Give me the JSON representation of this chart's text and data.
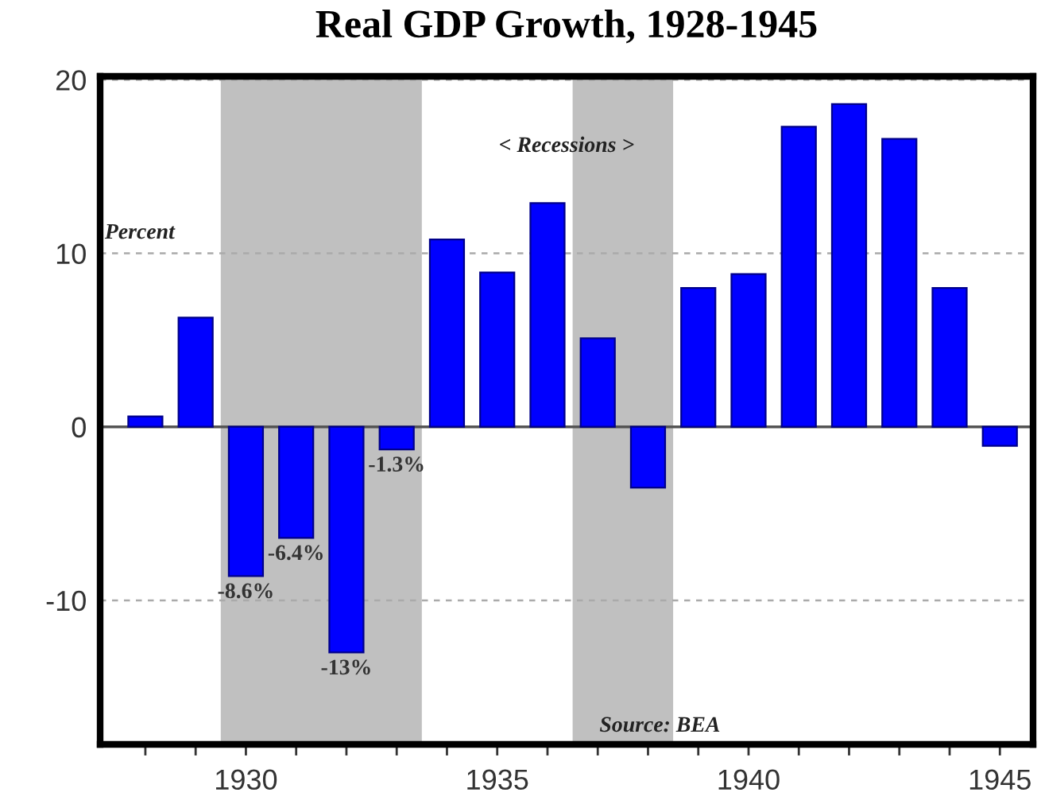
{
  "chart_data": {
    "type": "bar",
    "title": "Real GDP Growth, 1928-1945",
    "x": [
      1928,
      1929,
      1930,
      1931,
      1932,
      1933,
      1934,
      1935,
      1936,
      1937,
      1938,
      1939,
      1940,
      1941,
      1942,
      1943,
      1944,
      1945
    ],
    "values": [
      0.6,
      6.3,
      -8.6,
      -6.4,
      -13,
      -1.3,
      10.8,
      8.9,
      12.9,
      5.1,
      -3.5,
      8.0,
      8.8,
      17.3,
      18.6,
      16.6,
      8.0,
      -1.1
    ],
    "color": "#0000ff",
    "value_labels": [
      null,
      null,
      "-8.6%",
      "-6.4%",
      "-13%",
      "-1.3%",
      null,
      null,
      null,
      null,
      null,
      null,
      null,
      null,
      null,
      null,
      null,
      null
    ],
    "xlim": [
      1927.1,
      1945.66
    ],
    "ylim": [
      -18.3,
      20.2
    ],
    "xticks": [
      {
        "value": 1928,
        "label": null
      },
      {
        "value": 1929,
        "label": null
      },
      1930,
      {
        "value": 1931,
        "label": null
      },
      {
        "value": 1932,
        "label": null
      },
      {
        "value": 1933,
        "label": null
      },
      {
        "value": 1934,
        "label": null
      },
      1935,
      {
        "value": 1936,
        "label": null
      },
      {
        "value": 1937,
        "label": null
      },
      {
        "value": 1938,
        "label": null
      },
      {
        "value": 1939,
        "label": null
      },
      1940,
      {
        "value": 1941,
        "label": null
      },
      {
        "value": 1942,
        "label": null
      },
      {
        "value": 1943,
        "label": null
      },
      {
        "value": 1944,
        "label": null
      },
      1945
    ],
    "yticks": [
      -10,
      0,
      10,
      20
    ],
    "grid": "y",
    "ref_lines": [
      {
        "axis": "y",
        "value": 0,
        "color": "#555555",
        "line_style": "solid"
      }
    ],
    "bands": [
      {
        "axis": "x",
        "from": 1929.5,
        "to": 1933.5,
        "color": "#c0c0c0"
      },
      {
        "axis": "x",
        "from": 1936.5,
        "to": 1938.5,
        "color": "#c0c0c0"
      }
    ],
    "annotations": [
      "< Recessions >",
      "Percent",
      "Source: BEA"
    ]
  }
}
